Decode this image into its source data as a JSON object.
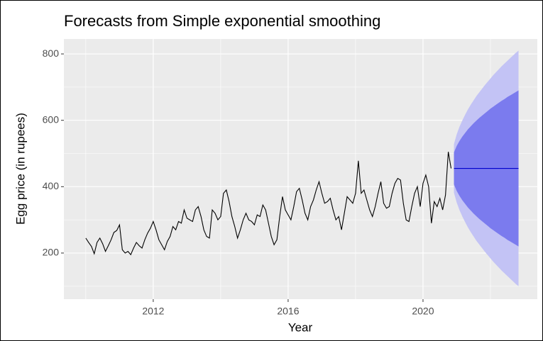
{
  "chart_data": {
    "type": "line",
    "title": "Forecasts from Simple exponential smoothing",
    "x_label": "Year",
    "y_label": "Egg price (in rupees)",
    "xlim": [
      2009.35,
      2023.39
    ],
    "ylim": [
      61,
      845
    ],
    "xticks": [
      2012,
      2016,
      2020
    ],
    "yticks": [
      200,
      400,
      600,
      800
    ],
    "xminor": [
      2010,
      2014,
      2018,
      2022
    ],
    "yminor": [
      100,
      300,
      500,
      700
    ],
    "grid": true,
    "series": [
      {
        "color": "#000000",
        "x": [
          2010,
          2010.083,
          2010.167,
          2010.25,
          2010.333,
          2010.417,
          2010.5,
          2010.583,
          2010.667,
          2010.75,
          2010.833,
          2010.917,
          2011,
          2011.083,
          2011.167,
          2011.25,
          2011.333,
          2011.417,
          2011.5,
          2011.583,
          2011.667,
          2011.75,
          2011.833,
          2011.917,
          2012,
          2012.083,
          2012.167,
          2012.25,
          2012.333,
          2012.417,
          2012.5,
          2012.583,
          2012.667,
          2012.75,
          2012.833,
          2012.917,
          2013,
          2013.083,
          2013.167,
          2013.25,
          2013.333,
          2013.417,
          2013.5,
          2013.583,
          2013.667,
          2013.75,
          2013.833,
          2013.917,
          2014,
          2014.083,
          2014.167,
          2014.25,
          2014.333,
          2014.417,
          2014.5,
          2014.583,
          2014.667,
          2014.75,
          2014.833,
          2014.917,
          2015,
          2015.083,
          2015.167,
          2015.25,
          2015.333,
          2015.417,
          2015.5,
          2015.583,
          2015.667,
          2015.75,
          2015.833,
          2015.917,
          2016,
          2016.083,
          2016.167,
          2016.25,
          2016.333,
          2016.417,
          2016.5,
          2016.583,
          2016.667,
          2016.75,
          2016.833,
          2016.917,
          2017,
          2017.083,
          2017.167,
          2017.25,
          2017.333,
          2017.417,
          2017.5,
          2017.583,
          2017.667,
          2017.75,
          2017.833,
          2017.917,
          2018,
          2018.083,
          2018.167,
          2018.25,
          2018.333,
          2018.417,
          2018.5,
          2018.583,
          2018.667,
          2018.75,
          2018.833,
          2018.917,
          2019,
          2019.083,
          2019.167,
          2019.25,
          2019.333,
          2019.417,
          2019.5,
          2019.583,
          2019.667,
          2019.75,
          2019.833,
          2019.917,
          2020,
          2020.083,
          2020.167,
          2020.25,
          2020.333,
          2020.417,
          2020.5,
          2020.583,
          2020.667,
          2020.75,
          2020.833
        ],
        "values": [
          245,
          232,
          220,
          198,
          232,
          245,
          228,
          205,
          222,
          240,
          262,
          268,
          285,
          210,
          200,
          205,
          195,
          215,
          232,
          222,
          215,
          240,
          260,
          275,
          295,
          270,
          240,
          225,
          210,
          235,
          250,
          280,
          270,
          295,
          290,
          330,
          305,
          300,
          295,
          330,
          340,
          310,
          270,
          250,
          245,
          330,
          320,
          300,
          310,
          380,
          390,
          355,
          310,
          280,
          245,
          270,
          300,
          320,
          300,
          295,
          285,
          315,
          310,
          345,
          330,
          290,
          250,
          225,
          240,
          310,
          370,
          330,
          315,
          300,
          340,
          385,
          395,
          360,
          320,
          300,
          340,
          360,
          390,
          415,
          380,
          350,
          355,
          365,
          330,
          300,
          310,
          270,
          320,
          370,
          360,
          350,
          380,
          478,
          380,
          390,
          360,
          330,
          310,
          340,
          380,
          415,
          350,
          335,
          340,
          380,
          410,
          425,
          420,
          350,
          300,
          295,
          340,
          380,
          400,
          340,
          410,
          435,
          400,
          290,
          355,
          340,
          365,
          330,
          375,
          505,
          455
        ]
      }
    ],
    "forecast": {
      "color": "#0000cc",
      "color_80": "#7b7bee",
      "color_95": "#c3c3f5",
      "x": [
        2020.917,
        2021,
        2021.083,
        2021.167,
        2021.25,
        2021.333,
        2021.417,
        2021.5,
        2021.583,
        2021.667,
        2021.75,
        2021.833,
        2021.917,
        2022,
        2022.083,
        2022.167,
        2022.25,
        2022.333,
        2022.417,
        2022.5,
        2022.583,
        2022.667,
        2022.75,
        2022.833
      ],
      "mean": [
        455,
        455,
        455,
        455,
        455,
        455,
        455,
        455,
        455,
        455,
        455,
        455,
        455,
        455,
        455,
        455,
        455,
        455,
        455,
        455,
        455,
        455,
        455,
        455
      ],
      "lower_80": [
        407,
        387,
        372,
        359,
        348,
        337,
        328,
        319,
        311,
        303,
        296,
        289,
        282,
        275,
        269,
        263,
        257,
        251,
        246,
        240,
        235,
        230,
        225,
        220
      ],
      "upper_80": [
        503,
        523,
        538,
        551,
        562,
        573,
        582,
        591,
        599,
        607,
        614,
        621,
        628,
        635,
        641,
        647,
        653,
        659,
        664,
        670,
        675,
        680,
        685,
        690
      ],
      "lower_95": [
        382,
        352,
        329,
        310,
        293,
        277,
        263,
        250,
        237,
        226,
        215,
        204,
        194,
        184,
        174,
        165,
        156,
        147,
        139,
        131,
        123,
        115,
        107,
        100
      ],
      "upper_95": [
        528,
        558,
        581,
        600,
        617,
        633,
        647,
        660,
        673,
        684,
        695,
        706,
        716,
        726,
        736,
        745,
        754,
        763,
        771,
        779,
        787,
        795,
        803,
        810
      ]
    }
  }
}
